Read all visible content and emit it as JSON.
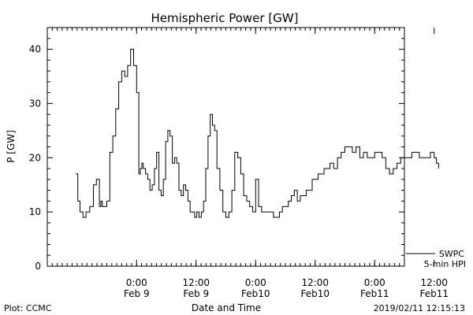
{
  "chart_data": {
    "type": "line",
    "title": "Hemispheric Power [GW]",
    "ylabel": "P [GW]",
    "xlabel": "Date and Time",
    "ylim": [
      0,
      44
    ],
    "xlim_hours": [
      -12,
      36
    ],
    "y_ticks": [
      0,
      10,
      20,
      30,
      40
    ],
    "x_ticks": [
      {
        "value": 0,
        "time": "0:00",
        "date": "Feb 9"
      },
      {
        "value": 8,
        "time": "12:00",
        "date": "Feb 9"
      },
      {
        "value": 16,
        "time": "0:00",
        "date": "Feb10"
      },
      {
        "value": 24,
        "time": "12:00",
        "date": "Feb10"
      },
      {
        "value": 32,
        "time": "0:00",
        "date": "Feb11"
      },
      {
        "value": 40,
        "time": "12:00",
        "date": "Feb11"
      }
    ],
    "legend": {
      "line1": "SWPC",
      "line2": "5-min HPI",
      "placement": "bottom-right outside"
    },
    "series": [
      {
        "name": "SWPC 5-min HPI",
        "x": [
          -8.2,
          -7.9,
          -7.6,
          -7.2,
          -6.8,
          -6.3,
          -5.8,
          -5.4,
          -5.0,
          -4.8,
          -4.6,
          -4.3,
          -4.0,
          -3.6,
          -3.2,
          -2.8,
          -2.4,
          -2.0,
          -1.6,
          -1.2,
          -0.8,
          -0.4,
          0.0,
          0.3,
          0.5,
          0.7,
          0.9,
          1.2,
          1.5,
          1.8,
          2.1,
          2.4,
          2.7,
          3.0,
          3.3,
          3.6,
          3.9,
          4.2,
          4.5,
          4.8,
          5.1,
          5.4,
          5.7,
          6.0,
          6.3,
          6.6,
          6.9,
          7.2,
          7.5,
          7.8,
          8.1,
          8.4,
          8.7,
          9.0,
          9.3,
          9.6,
          9.9,
          10.2,
          10.5,
          10.8,
          11.2,
          11.6,
          12.0,
          12.4,
          12.8,
          13.2,
          13.6,
          14.0,
          14.4,
          14.8,
          15.2,
          15.6,
          16.0,
          16.4,
          16.8,
          17.2,
          17.6,
          18.0,
          18.4,
          18.8,
          19.2,
          19.6,
          20.0,
          20.4,
          20.8,
          21.2,
          21.6,
          22.0,
          22.8,
          23.6,
          24.4,
          25.2,
          26.0,
          26.5,
          27.0,
          27.5,
          28.0,
          28.5,
          29.0,
          29.5,
          30.0,
          30.5,
          31.0,
          31.5,
          32.0,
          32.5,
          33.0,
          33.5,
          34.0,
          34.5,
          35.0,
          35.5,
          36.0,
          36.5,
          37.0,
          37.5,
          38.0,
          38.5,
          39.0,
          39.5,
          40.0,
          40.3,
          40.6
        ],
        "y": [
          17,
          12,
          10,
          9,
          10,
          11,
          15,
          16,
          11,
          12,
          11,
          11,
          12,
          21,
          24,
          29,
          34,
          36,
          35,
          37,
          40,
          37,
          32,
          17,
          18,
          19,
          18,
          17,
          16,
          14,
          15,
          18,
          21,
          14,
          13,
          16,
          23,
          25,
          24,
          19,
          20,
          19,
          14,
          13,
          15,
          14,
          12,
          10,
          10,
          9,
          10,
          9,
          10,
          12,
          18,
          24,
          28,
          26,
          25,
          18,
          14,
          10,
          9,
          10,
          14,
          21,
          20,
          17,
          13,
          12,
          11,
          10,
          16,
          11,
          10,
          10,
          10,
          10,
          9,
          9,
          10,
          11,
          11,
          12,
          13,
          14,
          12,
          13,
          14,
          16,
          17,
          18,
          19,
          18,
          20,
          21,
          22,
          22,
          21,
          22,
          20,
          21,
          20,
          20,
          21,
          21,
          20,
          18,
          17,
          18,
          19,
          20,
          20,
          20,
          21,
          21,
          20,
          20,
          20,
          21,
          20,
          19,
          18
        ]
      }
    ]
  },
  "footer": {
    "left": "Plot: CCMC",
    "right": "2019/02/11 12:15:13"
  }
}
